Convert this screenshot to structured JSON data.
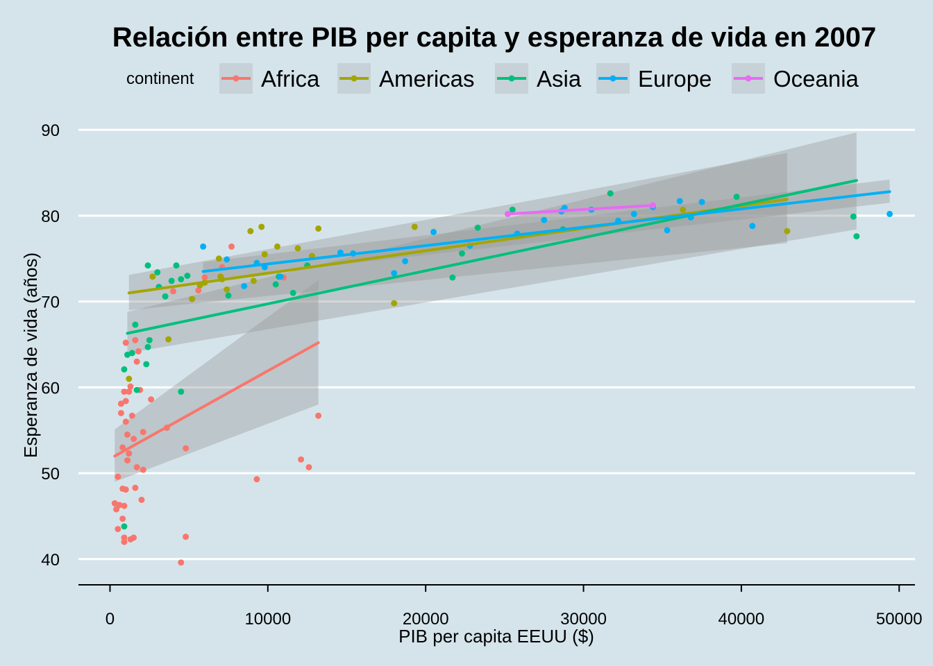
{
  "chart_data": {
    "type": "scatter",
    "title": "Relación entre PIB per capita y esperanza de vida en 2007",
    "xlabel": "PIB per capita EEUU ($)",
    "ylabel": "Esperanza de vida (años)",
    "xlim": [
      -2000,
      51000
    ],
    "ylim": [
      37,
      93
    ],
    "xticks": [
      0,
      10000,
      20000,
      30000,
      40000,
      50000
    ],
    "yticks": [
      40,
      50,
      60,
      70,
      80,
      90
    ],
    "grid": "horizontal major",
    "legend": {
      "title": "continent",
      "placement": "top"
    },
    "series": [
      {
        "name": "Africa",
        "color": "#f8766d",
        "points": [
          [
            300,
            46.5
          ],
          [
            400,
            45.8
          ],
          [
            500,
            43.5
          ],
          [
            500,
            49.6
          ],
          [
            600,
            46.3
          ],
          [
            700,
            57
          ],
          [
            700,
            58.1
          ],
          [
            800,
            53
          ],
          [
            800,
            48.2
          ],
          [
            800,
            44.7
          ],
          [
            900,
            59.5
          ],
          [
            900,
            46.2
          ],
          [
            900,
            42.5
          ],
          [
            900,
            42
          ],
          [
            1000,
            58.4
          ],
          [
            1000,
            56
          ],
          [
            1000,
            48.1
          ],
          [
            1000,
            65.2
          ],
          [
            1100,
            54.5
          ],
          [
            1100,
            51.5
          ],
          [
            1200,
            52.3
          ],
          [
            1200,
            59.5
          ],
          [
            1300,
            42.3
          ],
          [
            1300,
            60.1
          ],
          [
            1400,
            64
          ],
          [
            1400,
            56.7
          ],
          [
            1500,
            54
          ],
          [
            1500,
            42.5
          ],
          [
            1600,
            65.5
          ],
          [
            1600,
            48.3
          ],
          [
            1700,
            63
          ],
          [
            1700,
            50.7
          ],
          [
            1800,
            64.2
          ],
          [
            1900,
            59.7
          ],
          [
            2000,
            46.9
          ],
          [
            2100,
            50.4
          ],
          [
            2100,
            54.8
          ],
          [
            2600,
            58.6
          ],
          [
            3600,
            55.3
          ],
          [
            4000,
            71.2
          ],
          [
            4500,
            39.6
          ],
          [
            4800,
            42.6
          ],
          [
            4800,
            52.9
          ],
          [
            5600,
            71.3
          ],
          [
            6000,
            72.8
          ],
          [
            7100,
            74
          ],
          [
            7700,
            76.4
          ],
          [
            9300,
            49.3
          ],
          [
            11000,
            72.8
          ],
          [
            12100,
            51.6
          ],
          [
            12600,
            50.7
          ],
          [
            13200,
            56.7
          ]
        ],
        "fit": [
          [
            300,
            52
          ],
          [
            13200,
            65.2
          ]
        ],
        "band": [
          [
            300,
            49.0,
            55.1
          ],
          [
            13200,
            58.0,
            72.5
          ]
        ]
      },
      {
        "name": "Americas",
        "color": "#a3a500",
        "points": [
          [
            1200,
            61
          ],
          [
            2700,
            72.9
          ],
          [
            3700,
            65.6
          ],
          [
            5200,
            70.3
          ],
          [
            5700,
            71.9
          ],
          [
            6000,
            72.2
          ],
          [
            6900,
            75
          ],
          [
            7000,
            72.9
          ],
          [
            7400,
            71.4
          ],
          [
            7100,
            72.6
          ],
          [
            8900,
            78.2
          ],
          [
            9100,
            72.4
          ],
          [
            9600,
            78.7
          ],
          [
            9800,
            75.5
          ],
          [
            10600,
            76.4
          ],
          [
            11900,
            76.2
          ],
          [
            12800,
            75.3
          ],
          [
            13200,
            78.5
          ],
          [
            18000,
            69.8
          ],
          [
            19300,
            78.7
          ],
          [
            36300,
            80.7
          ],
          [
            42900,
            78.2
          ]
        ],
        "fit": [
          [
            1200,
            71
          ],
          [
            42900,
            81.9
          ]
        ],
        "band": [
          [
            1200,
            69.0,
            73.1
          ],
          [
            42900,
            76.8,
            87.3
          ]
        ]
      },
      {
        "name": "Asia",
        "color": "#00bf7d",
        "points": [
          [
            900,
            43.8
          ],
          [
            900,
            62.1
          ],
          [
            1100,
            63.8
          ],
          [
            1400,
            64
          ],
          [
            1600,
            67.3
          ],
          [
            1700,
            59.7
          ],
          [
            2300,
            62.7
          ],
          [
            2400,
            64.7
          ],
          [
            2400,
            74.2
          ],
          [
            2500,
            65.5
          ],
          [
            3000,
            73.4
          ],
          [
            3100,
            71.7
          ],
          [
            3500,
            70.6
          ],
          [
            3900,
            72.4
          ],
          [
            4200,
            74.2
          ],
          [
            4500,
            59.5
          ],
          [
            4500,
            72.6
          ],
          [
            4900,
            73
          ],
          [
            7500,
            70.7
          ],
          [
            10500,
            72
          ],
          [
            10700,
            72.9
          ],
          [
            11600,
            71
          ],
          [
            12500,
            74.2
          ],
          [
            21700,
            72.8
          ],
          [
            22300,
            75.6
          ],
          [
            23300,
            78.6
          ],
          [
            25500,
            80.7
          ],
          [
            28700,
            78.4
          ],
          [
            31700,
            82.6
          ],
          [
            39700,
            82.2
          ],
          [
            47100,
            79.9
          ],
          [
            47300,
            77.6
          ]
        ],
        "fit": [
          [
            1100,
            66.3
          ],
          [
            47300,
            84.1
          ]
        ],
        "band": [
          [
            1100,
            64.0,
            68.8
          ],
          [
            47300,
            78.4,
            89.7
          ]
        ]
      },
      {
        "name": "Europe",
        "color": "#00b0f6",
        "points": [
          [
            5900,
            76.4
          ],
          [
            7400,
            74.9
          ],
          [
            8500,
            71.8
          ],
          [
            9300,
            74.5
          ],
          [
            9800,
            74
          ],
          [
            10800,
            72.9
          ],
          [
            14600,
            75.7
          ],
          [
            15400,
            75.6
          ],
          [
            18000,
            73.3
          ],
          [
            18700,
            74.7
          ],
          [
            20500,
            78.1
          ],
          [
            22800,
            76.5
          ],
          [
            25800,
            77.9
          ],
          [
            27500,
            79.5
          ],
          [
            28600,
            80.5
          ],
          [
            28800,
            80.9
          ],
          [
            30500,
            80.7
          ],
          [
            32200,
            79.4
          ],
          [
            33200,
            80.2
          ],
          [
            34400,
            81
          ],
          [
            35300,
            78.3
          ],
          [
            36100,
            81.7
          ],
          [
            36800,
            79.8
          ],
          [
            37500,
            81.6
          ],
          [
            40700,
            78.8
          ],
          [
            49400,
            80.2
          ]
        ],
        "fit": [
          [
            5900,
            73.5
          ],
          [
            49400,
            82.8
          ]
        ],
        "band": [
          [
            5900,
            72.5,
            74.6
          ],
          [
            49400,
            81.5,
            84.2
          ]
        ]
      },
      {
        "name": "Oceania",
        "color": "#e76bf3",
        "points": [
          [
            25200,
            80.2
          ],
          [
            34400,
            81.2
          ]
        ],
        "fit": [
          [
            25200,
            80.2
          ],
          [
            34400,
            81.2
          ]
        ],
        "band": []
      }
    ]
  }
}
